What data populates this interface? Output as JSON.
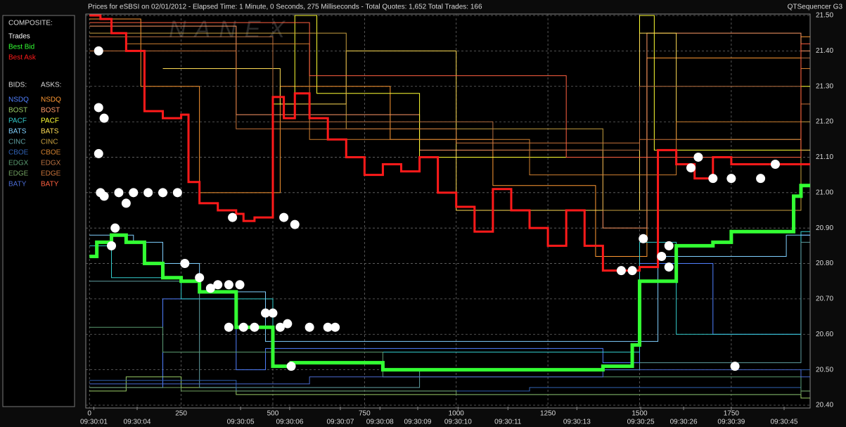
{
  "chart_data": {
    "type": "quotes",
    "title": "Prices for  eSBSI  on  02/01/2012  -  Elapsed Time: 1 Minute, 0 Seconds, 275 Milliseconds  -  Total Quotes: 1,652  Total Trades: 166",
    "app_name": "QTSequencer G3",
    "watermark": "NANEX",
    "composite_title": "COMPOSITE:",
    "bids_title": "BIDS:",
    "asks_title": "ASKS:",
    "xlim": [
      -10,
      1965
    ],
    "ylim": [
      20.4,
      21.5
    ],
    "grid": true,
    "xticks": [
      0,
      250,
      500,
      750,
      1000,
      1250,
      1500,
      1750
    ],
    "time_ticks": [
      {
        "value": 12,
        "label": "09:30:01"
      },
      {
        "value": 130,
        "label": "09:30:04"
      },
      {
        "value": 412,
        "label": "09:30:05"
      },
      {
        "value": 546,
        "label": "09:30:06"
      },
      {
        "value": 684,
        "label": "09:30:07"
      },
      {
        "value": 792,
        "label": "09:30:08"
      },
      {
        "value": 895,
        "label": "09:30:09"
      },
      {
        "value": 1005,
        "label": "09:30:10"
      },
      {
        "value": 1141,
        "label": "09:30:11"
      },
      {
        "value": 1329,
        "label": "09:30:13"
      },
      {
        "value": 1503,
        "label": "09:30:25"
      },
      {
        "value": 1620,
        "label": "09:30:26"
      },
      {
        "value": 1750,
        "label": "09:30:39"
      },
      {
        "value": 1894,
        "label": "09:30:45"
      }
    ],
    "yticks": [
      {
        "value": 20.4,
        "label": "20.40"
      },
      {
        "value": 20.5,
        "label": "20.50"
      },
      {
        "value": 20.6,
        "label": "20.60"
      },
      {
        "value": 20.7,
        "label": "20.70"
      },
      {
        "value": 20.8,
        "label": "20.80"
      },
      {
        "value": 20.9,
        "label": "20.90"
      },
      {
        "value": 21.0,
        "label": "21.00"
      },
      {
        "value": 21.1,
        "label": "21.10"
      },
      {
        "value": 21.2,
        "label": "21.20"
      },
      {
        "value": 21.3,
        "label": "21.30"
      },
      {
        "value": 21.4,
        "label": "21.40"
      },
      {
        "value": 21.5,
        "label": "21.50"
      }
    ],
    "series": [
      {
        "name": "Trades",
        "color": "#ffffff",
        "style": "dots",
        "x": [
          25,
          25,
          40,
          25,
          30,
          40,
          60,
          70,
          80,
          100,
          120,
          160,
          200,
          240,
          260,
          300,
          330,
          350,
          380,
          390,
          410,
          380,
          420,
          450,
          480,
          500,
          520,
          540,
          550,
          530,
          560,
          600,
          650,
          670,
          1450,
          1480,
          1510,
          1560,
          1580,
          1580,
          1640,
          1660,
          1700,
          1750,
          1760,
          1830,
          1870
        ],
        "values": [
          21.4,
          21.24,
          21.21,
          21.11,
          21.0,
          20.99,
          20.85,
          20.9,
          21.0,
          20.97,
          21.0,
          21.0,
          21.0,
          21.0,
          20.8,
          20.76,
          20.73,
          20.74,
          20.74,
          20.93,
          20.74,
          20.62,
          20.62,
          20.62,
          20.66,
          20.66,
          20.62,
          20.63,
          20.51,
          20.93,
          20.91,
          20.62,
          20.62,
          20.62,
          20.78,
          20.78,
          20.87,
          20.82,
          20.85,
          20.79,
          21.07,
          21.1,
          21.04,
          21.04,
          20.51,
          21.04,
          21.08
        ]
      },
      {
        "name": "Best Bid",
        "color": "#33ff33",
        "style": "step",
        "x": [
          0,
          20,
          60,
          100,
          150,
          200,
          250,
          300,
          400,
          500,
          550,
          650,
          800,
          1000,
          1200,
          1400,
          1480,
          1500,
          1600,
          1700,
          1750,
          1900,
          1920,
          1940
        ],
        "values": [
          20.82,
          20.86,
          20.88,
          20.86,
          20.8,
          20.76,
          20.75,
          20.72,
          20.62,
          20.51,
          20.52,
          20.52,
          20.5,
          20.5,
          20.5,
          20.51,
          20.57,
          20.75,
          20.85,
          20.86,
          20.89,
          20.89,
          20.99,
          21.02
        ]
      },
      {
        "name": "Best Ask",
        "color": "#ff1a1a",
        "style": "step",
        "x": [
          0,
          30,
          60,
          100,
          150,
          200,
          250,
          270,
          300,
          350,
          400,
          420,
          450,
          500,
          530,
          560,
          600,
          650,
          700,
          750,
          800,
          850,
          900,
          950,
          1000,
          1050,
          1100,
          1150,
          1200,
          1250,
          1300,
          1350,
          1400,
          1450,
          1500,
          1550,
          1600,
          1650,
          1700,
          1750,
          1800,
          1850
        ],
        "values": [
          21.5,
          21.49,
          21.45,
          21.4,
          21.23,
          21.21,
          21.22,
          21.03,
          20.97,
          20.95,
          20.94,
          20.92,
          20.93,
          21.27,
          21.21,
          21.28,
          21.21,
          21.15,
          21.1,
          21.05,
          21.08,
          21.06,
          21.1,
          21.0,
          20.96,
          20.89,
          21.01,
          20.95,
          20.9,
          20.85,
          20.95,
          20.85,
          20.78,
          20.78,
          20.79,
          21.12,
          21.08,
          21.04,
          21.1,
          21.08,
          21.08,
          21.08
        ]
      }
    ],
    "bids": [
      {
        "name": "NSDQ",
        "color": "#5080ff",
        "x": [
          0,
          200,
          400,
          480,
          1400,
          1500,
          1700,
          1940
        ],
        "values": [
          20.45,
          20.7,
          20.5,
          20.56,
          20.52,
          20.8,
          20.6,
          20.88
        ]
      },
      {
        "name": "BOST",
        "color": "#99cc66",
        "x": [
          0,
          100,
          250,
          400,
          1940
        ],
        "values": [
          20.44,
          20.48,
          20.45,
          20.43,
          20.42
        ]
      },
      {
        "name": "PACF",
        "color": "#33cccc",
        "x": [
          0,
          60,
          250,
          500,
          1500,
          1600,
          1940
        ],
        "values": [
          20.85,
          20.76,
          20.7,
          20.55,
          20.86,
          20.6,
          20.89
        ]
      },
      {
        "name": "BATS",
        "color": "#80d0ff",
        "x": [
          0,
          120,
          200,
          300,
          480,
          1550,
          1900
        ],
        "values": [
          20.88,
          20.86,
          20.8,
          20.72,
          20.58,
          20.82,
          20.88
        ]
      },
      {
        "name": "CINC",
        "color": "#5f9ea0",
        "x": [
          0,
          300,
          900,
          1500,
          1940
        ],
        "values": [
          20.75,
          20.45,
          20.5,
          20.52,
          20.86
        ]
      },
      {
        "name": "CBOE",
        "color": "#3060b0",
        "x": [
          0,
          400,
          1200,
          1940
        ],
        "values": [
          20.47,
          20.44,
          20.45,
          20.5
        ]
      },
      {
        "name": "EDGX",
        "color": "#5a9a70",
        "x": [
          0,
          200,
          800,
          1940
        ],
        "values": [
          20.62,
          20.55,
          20.48,
          20.44
        ]
      },
      {
        "name": "EDGE",
        "color": "#70a060",
        "x": [
          0,
          250,
          1000,
          1940
        ],
        "values": [
          20.45,
          20.44,
          20.43,
          20.44
        ]
      },
      {
        "name": "BATY",
        "color": "#4a6ad0",
        "x": [
          0,
          600,
          1400,
          1940
        ],
        "values": [
          20.46,
          20.48,
          20.5,
          20.48
        ]
      }
    ],
    "asks": [
      {
        "name": "NSDQ",
        "color": "#ff9933",
        "x": [
          0,
          140,
          300,
          520,
          820,
          1100,
          1380,
          1520,
          1940
        ],
        "values": [
          21.49,
          21.3,
          21.0,
          21.3,
          21.15,
          21.02,
          20.82,
          21.38,
          21.44
        ]
      },
      {
        "name": "BOST",
        "color": "#ff9966",
        "x": [
          0,
          400,
          900,
          1400,
          1520,
          1940
        ],
        "values": [
          21.47,
          21.22,
          21.12,
          20.9,
          21.45,
          21.4
        ]
      },
      {
        "name": "PACF",
        "color": "#ffff33",
        "x": [
          500,
          560,
          620,
          900,
          1500,
          1540,
          1940
        ],
        "values": [
          21.25,
          21.5,
          21.28,
          21.1,
          21.5,
          21.12,
          21.3
        ]
      },
      {
        "name": "BATS",
        "color": "#ffdd55",
        "x": [
          200,
          520,
          700,
          1000,
          1500,
          1600,
          1940
        ],
        "values": [
          21.35,
          21.25,
          21.4,
          20.95,
          21.45,
          21.15,
          21.12
        ]
      },
      {
        "name": "CINC",
        "color": "#c8a040",
        "x": [
          0,
          700,
          1400,
          1940
        ],
        "values": [
          21.45,
          21.18,
          20.95,
          21.2
        ]
      },
      {
        "name": "CBOE",
        "color": "#d08030",
        "x": [
          100,
          600,
          1200,
          1600,
          1940
        ],
        "values": [
          21.42,
          21.15,
          21.05,
          21.2,
          21.35
        ]
      },
      {
        "name": "EDGX",
        "color": "#b87040",
        "x": [
          0,
          500,
          1100,
          1500,
          1940
        ],
        "values": [
          21.44,
          21.2,
          21.12,
          21.3,
          21.38
        ]
      },
      {
        "name": "EDGE",
        "color": "#c8733a",
        "x": [
          0,
          400,
          1000,
          1500,
          1940
        ],
        "values": [
          21.4,
          21.18,
          21.14,
          21.15,
          21.25
        ]
      },
      {
        "name": "BATY",
        "color": "#ff6040",
        "x": [
          0,
          600,
          1300,
          1940
        ],
        "values": [
          21.48,
          21.33,
          21.1,
          21.42
        ]
      }
    ]
  }
}
